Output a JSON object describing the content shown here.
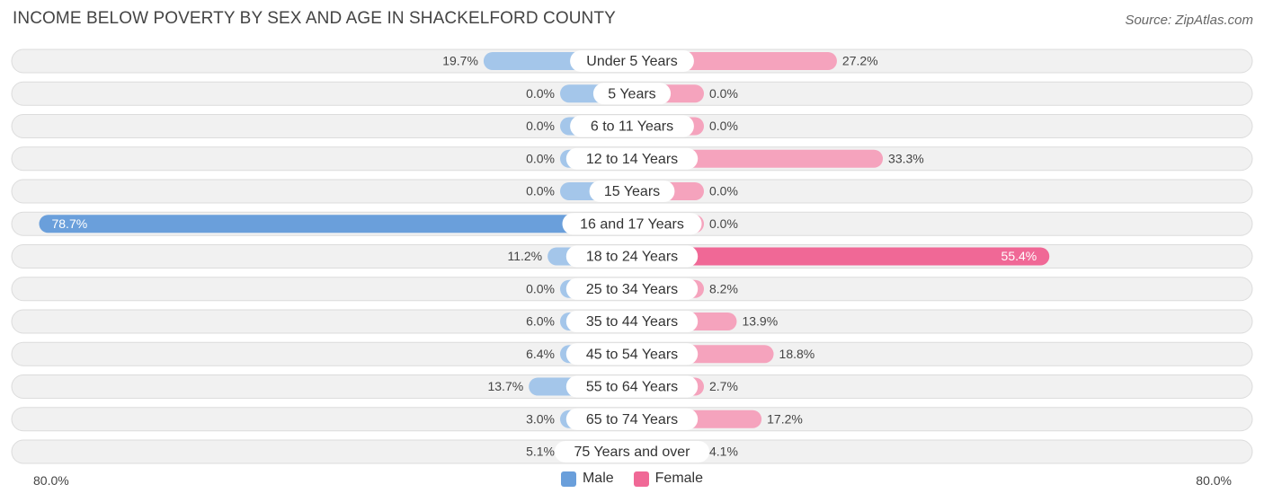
{
  "title": "INCOME BELOW POVERTY BY SEX AND AGE IN SHACKELFORD COUNTY",
  "source": "Source: ZipAtlas.com",
  "colors": {
    "male": "#a4c6ea",
    "male_strong": "#6a9fdb",
    "female": "#f5a3bd",
    "female_strong": "#f06896",
    "row_bg": "#f1f1f1",
    "row_border": "#dcdcdc"
  },
  "chart_data": {
    "type": "bar",
    "orientation": "horizontal-diverging",
    "title": "INCOME BELOW POVERTY BY SEX AND AGE IN SHACKELFORD COUNTY",
    "categories": [
      "Under 5 Years",
      "5 Years",
      "6 to 11 Years",
      "12 to 14 Years",
      "15 Years",
      "16 and 17 Years",
      "18 to 24 Years",
      "25 to 34 Years",
      "35 to 44 Years",
      "45 to 54 Years",
      "55 to 64 Years",
      "65 to 74 Years",
      "75 Years and over"
    ],
    "series": [
      {
        "name": "Male",
        "values": [
          19.7,
          0.0,
          0.0,
          0.0,
          0.0,
          78.7,
          11.2,
          0.0,
          6.0,
          6.4,
          13.7,
          3.0,
          5.1
        ],
        "labels": [
          "19.7%",
          "0.0%",
          "0.0%",
          "0.0%",
          "0.0%",
          "78.7%",
          "11.2%",
          "0.0%",
          "6.0%",
          "6.4%",
          "13.7%",
          "3.0%",
          "5.1%"
        ]
      },
      {
        "name": "Female",
        "values": [
          27.2,
          0.0,
          0.0,
          33.3,
          0.0,
          0.0,
          55.4,
          8.2,
          13.9,
          18.8,
          2.7,
          17.2,
          4.1
        ],
        "labels": [
          "27.2%",
          "0.0%",
          "0.0%",
          "33.3%",
          "0.0%",
          "0.0%",
          "55.4%",
          "8.2%",
          "13.9%",
          "18.8%",
          "2.7%",
          "17.2%",
          "4.1%"
        ]
      }
    ],
    "xlim": [
      -80,
      80
    ],
    "axis_labels": {
      "left": "80.0%",
      "right": "80.0%"
    },
    "legend": {
      "position": "bottom-center",
      "entries": [
        "Male",
        "Female"
      ]
    },
    "grid": false
  }
}
